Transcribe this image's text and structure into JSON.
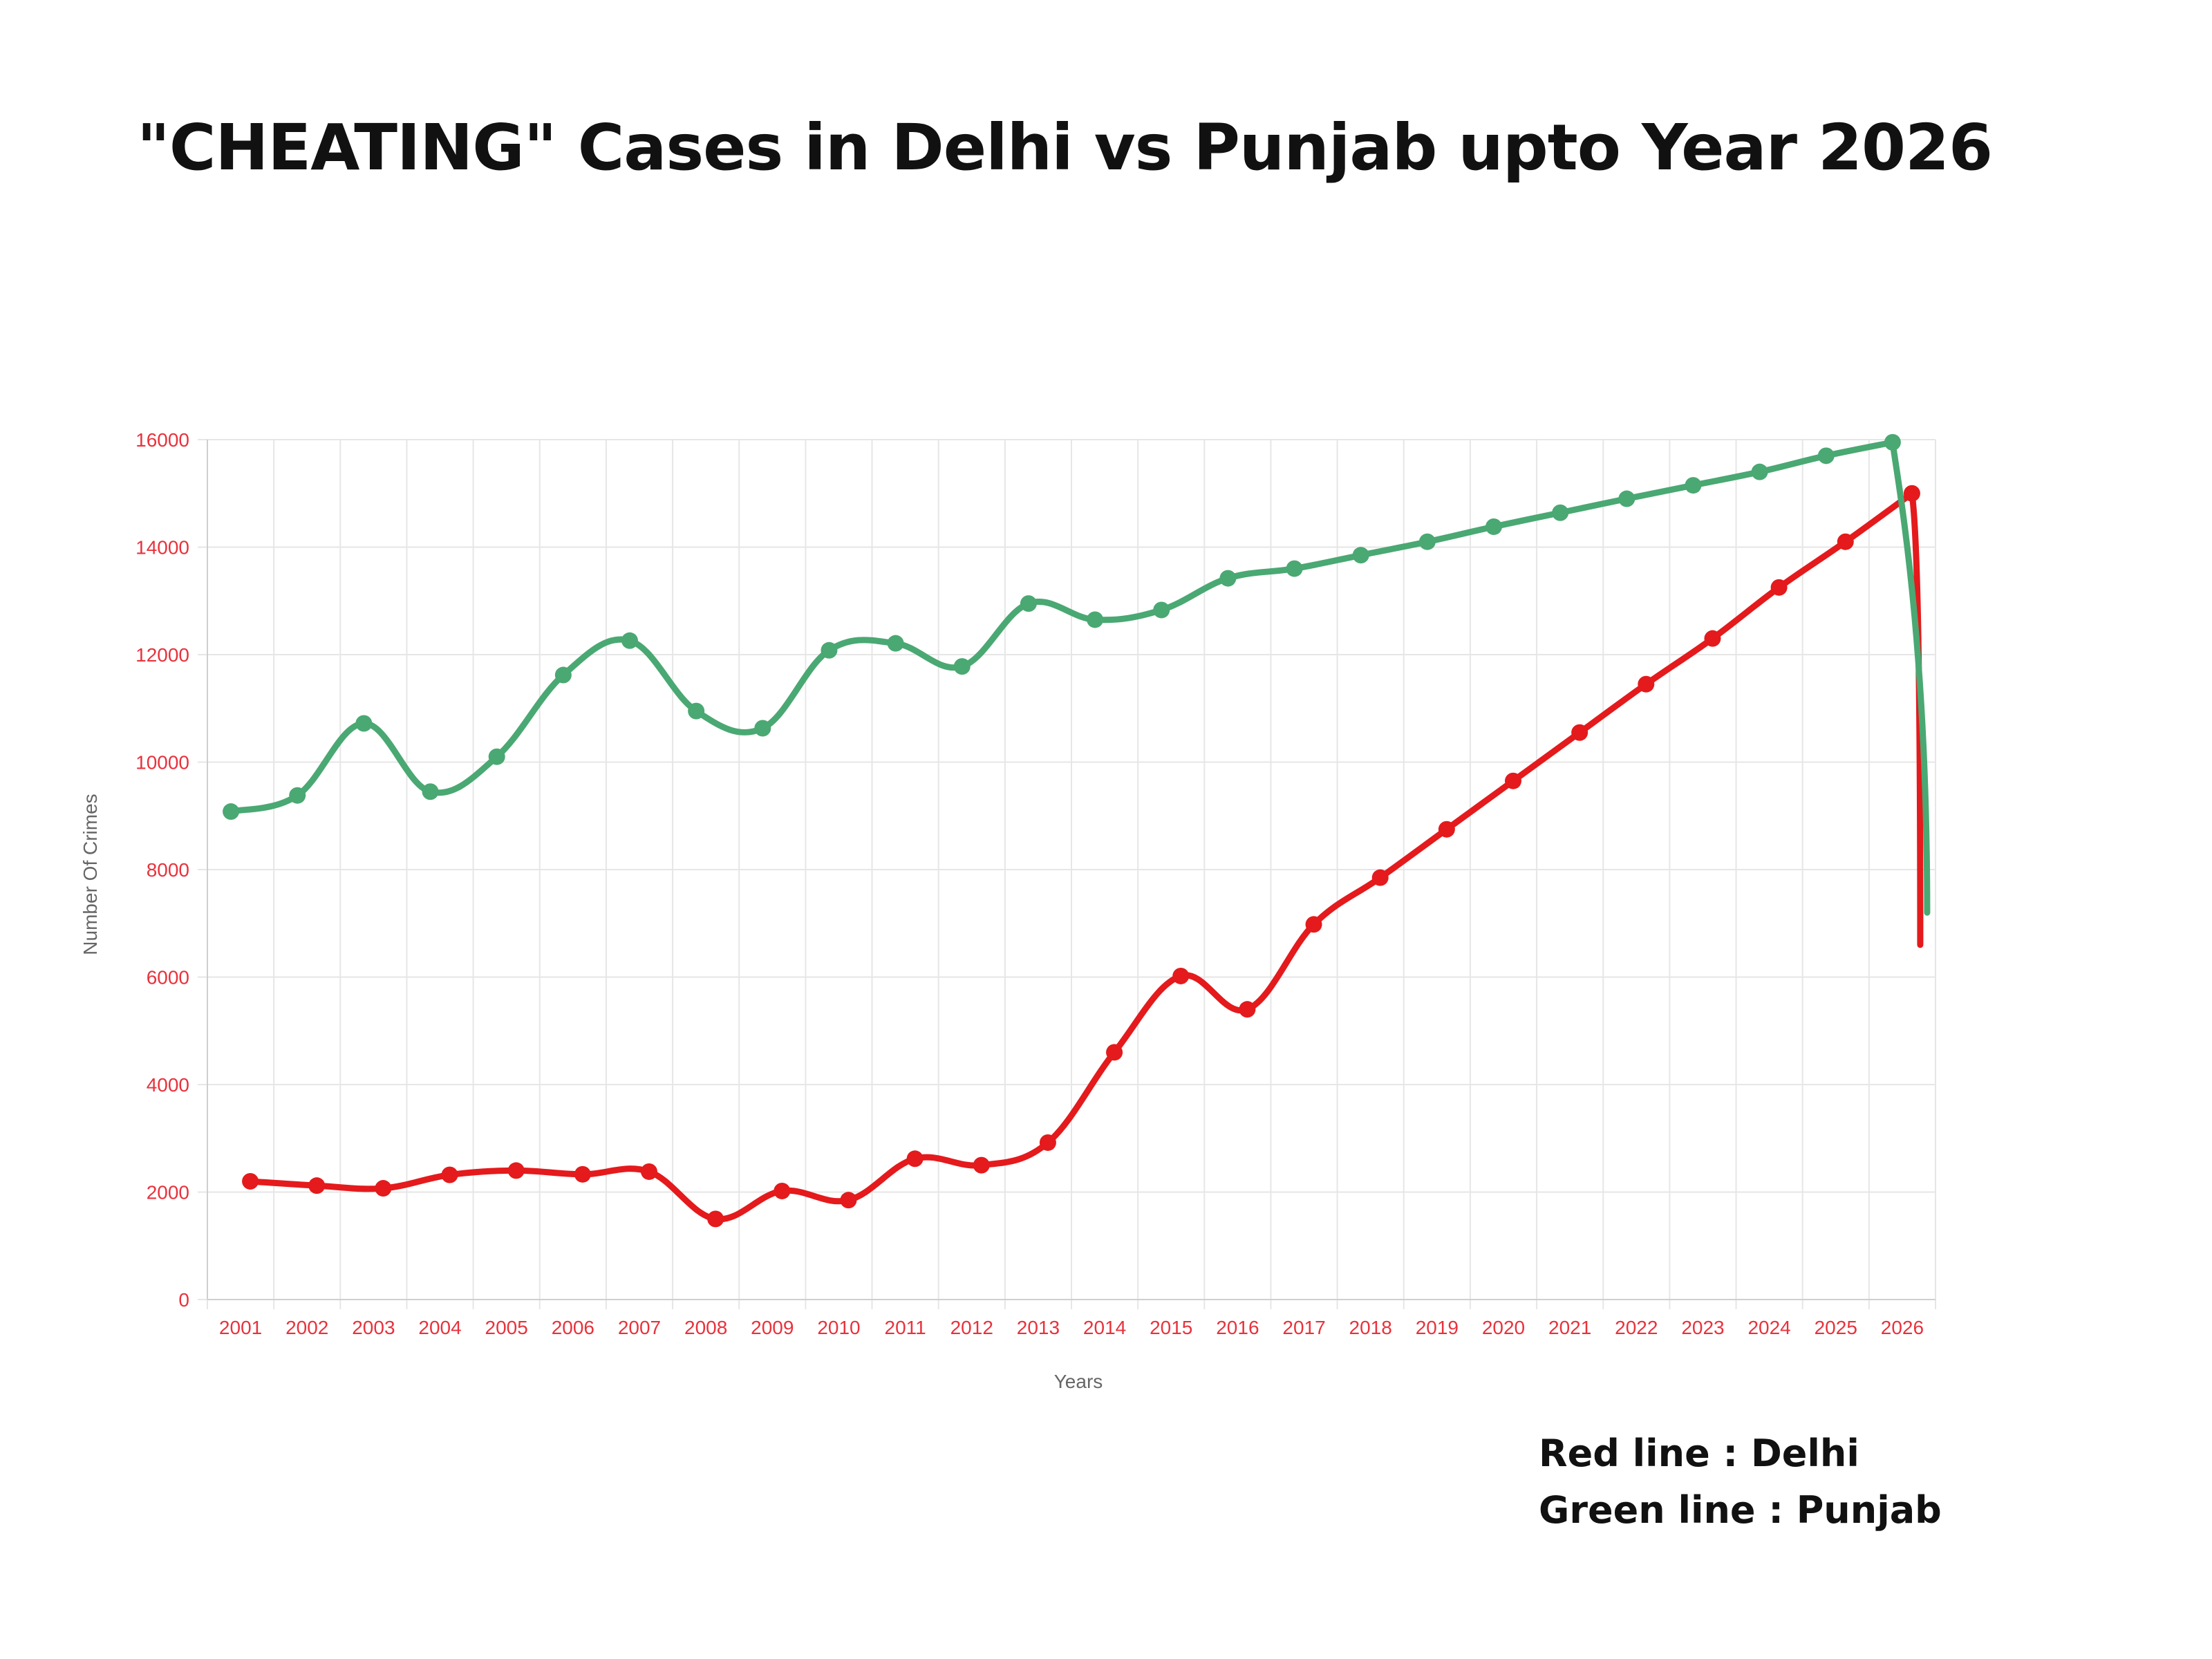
{
  "title": "\"CHEATING\" Cases in Delhi vs Punjab upto Year 2026",
  "legend_notes": [
    "Red line : Delhi",
    "Green line : Punjab"
  ],
  "colors": {
    "delhi": "#e41a1c",
    "punjab": "#4aa873",
    "ticks": "#e8323c",
    "grid": "#e6e6e6"
  },
  "chart_data": {
    "type": "line",
    "xlabel": "Years",
    "ylabel": "Number Of Crimes",
    "ylim": [
      0,
      16000
    ],
    "yticks": [
      0,
      2000,
      4000,
      6000,
      8000,
      10000,
      12000,
      14000,
      16000
    ],
    "categories": [
      "2001",
      "2002",
      "2003",
      "2004",
      "2005",
      "2006",
      "2007",
      "2008",
      "2009",
      "2010",
      "2011",
      "2012",
      "2013",
      "2014",
      "2015",
      "2016",
      "2017",
      "2018",
      "2019",
      "2020",
      "2021",
      "2022",
      "2023",
      "2024",
      "2025",
      "2026"
    ],
    "series": [
      {
        "name": "Delhi",
        "color": "#e41a1c",
        "values": [
          2200,
          2120,
          2070,
          2320,
          2400,
          2330,
          2380,
          1500,
          2020,
          1850,
          2620,
          2500,
          2920,
          4600,
          6020,
          5400,
          6980,
          7850,
          8750,
          9650,
          10550,
          11450,
          12300,
          13250,
          14100,
          15000
        ]
      },
      {
        "name": "Punjab",
        "color": "#4aa873",
        "values": [
          9080,
          9380,
          10720,
          9450,
          10100,
          11620,
          12260,
          10950,
          10630,
          12080,
          12210,
          11780,
          12950,
          12650,
          12830,
          13420,
          13600,
          13850,
          14100,
          14380,
          14640,
          14900,
          15150,
          15400,
          15700,
          15950
        ]
      }
    ]
  }
}
